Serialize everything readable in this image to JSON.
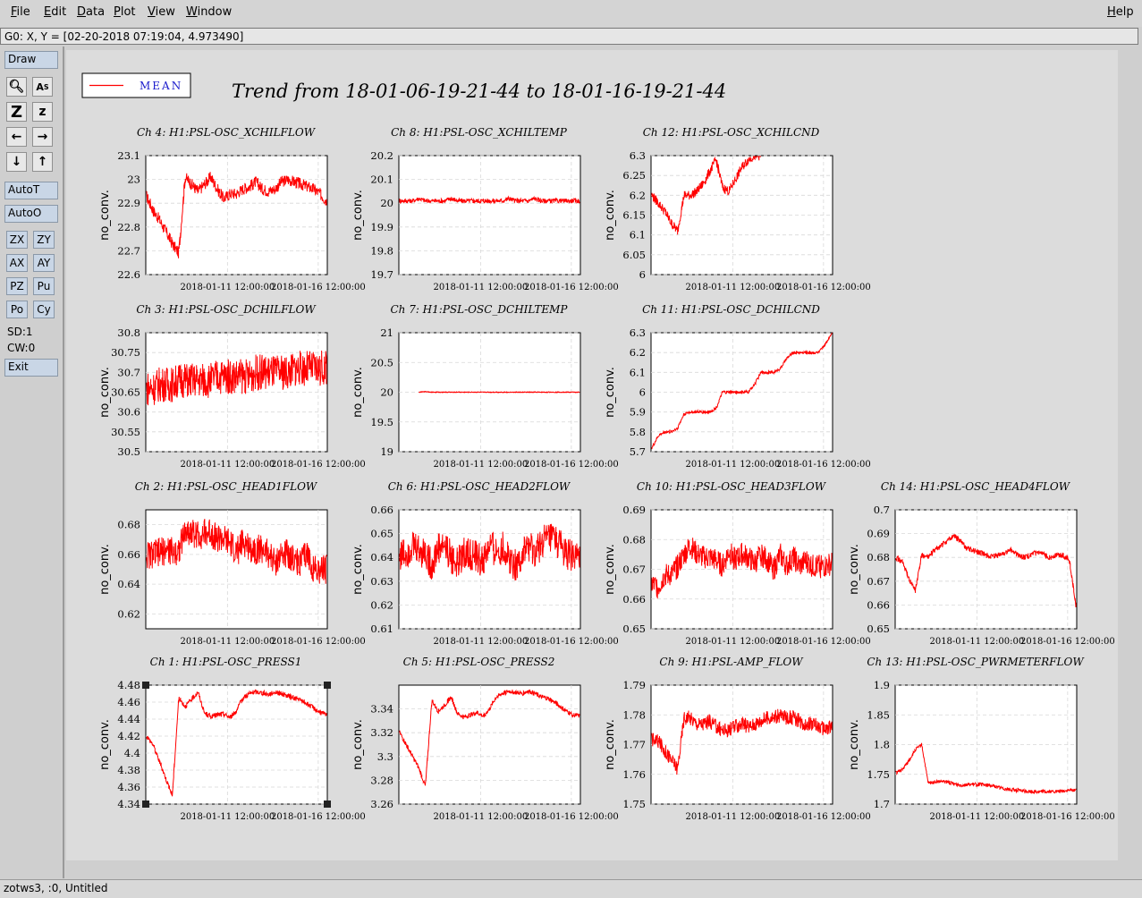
{
  "menubar": {
    "items": [
      "File",
      "Edit",
      "Data",
      "Plot",
      "View",
      "Window"
    ],
    "help": "Help"
  },
  "status": {
    "cursor_readout": "G0: X, Y = [02-20-2018 07:19:04, 4.973490]"
  },
  "toolbar": {
    "draw": "Draw",
    "auto_t": "AutoT",
    "auto_o": "AutoO",
    "small_buttons": [
      "ZX",
      "ZY",
      "AX",
      "AY",
      "PZ",
      "Pu",
      "Po",
      "Cy"
    ],
    "sd": "SD:1",
    "cw": "CW:0",
    "exit": "Exit"
  },
  "footer": {
    "text": "zotws3, :0, Untitled"
  },
  "colors": {
    "trace": "#ff0000",
    "legend_text": "#1a1acc",
    "panel_bg": "#ffffff"
  },
  "chart_data": {
    "type": "line",
    "title": "Trend from 18-01-06-19-21-44 to 18-01-16-19-21-44",
    "legend": {
      "entries": [
        "MEAN"
      ],
      "placement": "top-left"
    },
    "x_tick_labels": [
      "2018-01-11 12:00:00",
      "2018-01-16 12:00:00"
    ],
    "ylabel": "no_conv.",
    "panels": [
      {
        "title": "Ch 4: H1:PSL-OSC_XCHILFLOW",
        "ylim": [
          22.6,
          23.1
        ],
        "yticks": [
          "23.1",
          "23",
          "22.9",
          "22.8",
          "22.7",
          "22.6"
        ],
        "values": [
          22.93,
          22.87,
          22.83,
          22.78,
          22.73,
          22.69,
          23.01,
          22.98,
          22.95,
          22.98,
          23.01,
          22.96,
          22.92,
          22.94,
          22.94,
          22.96,
          22.97,
          22.99,
          22.96,
          22.95,
          22.96,
          22.99,
          23.0,
          22.99,
          22.98,
          22.97,
          22.96,
          22.94,
          22.91
        ],
        "band": 0.025
      },
      {
        "title": "Ch 8: H1:PSL-OSC_XCHILTEMP",
        "ylim": [
          19.7,
          20.2
        ],
        "yticks": [
          "20.2",
          "20.1",
          "20",
          "19.9",
          "19.8",
          "19.7"
        ],
        "values": [
          20.01,
          20.01,
          20.01,
          20.02,
          20.01,
          20.01,
          20.01,
          20.01,
          20.02,
          20.01,
          20.01,
          20.01,
          20.01,
          20.01,
          20.01,
          20.01,
          20.01,
          20.02,
          20.01,
          20.01,
          20.01,
          20.02,
          20.01,
          20.01,
          20.01,
          20.01,
          20.01,
          20.01,
          20.01
        ],
        "band": 0.01
      },
      {
        "title": "Ch 12: H1:PSL-OSC_XCHILCND",
        "ylim": [
          6,
          6.3
        ],
        "yticks": [
          "6.3",
          "6.25",
          "6.2",
          "6.15",
          "6.1",
          "6.05",
          "6"
        ],
        "values": [
          6.2,
          6.18,
          6.16,
          6.13,
          6.11,
          6.2,
          6.2,
          6.21,
          6.23,
          6.26,
          6.29,
          6.22,
          6.21,
          6.24,
          6.27,
          6.29,
          6.3,
          6.3,
          6.3,
          6.3,
          6.3,
          6.3,
          6.3,
          6.3,
          6.3,
          6.3,
          6.3,
          6.3,
          6.3
        ],
        "band": 0.012,
        "stop_at": 17
      },
      {
        "title": "Ch 3: H1:PSL-OSC_DCHILFLOW",
        "ylim": [
          30.5,
          30.8
        ],
        "yticks": [
          "30.8",
          "30.75",
          "30.7",
          "30.65",
          "30.6",
          "30.55",
          "30.5"
        ],
        "values": [
          30.66,
          30.66,
          30.67,
          30.67,
          30.67,
          30.68,
          30.68,
          30.68,
          30.68,
          30.68,
          30.68,
          30.69,
          30.69,
          30.69,
          30.69,
          30.69,
          30.69,
          30.7,
          30.7,
          30.7,
          30.7,
          30.7,
          30.7,
          30.71,
          30.71,
          30.71,
          30.71,
          30.71,
          30.71
        ],
        "band": 0.045
      },
      {
        "title": "Ch 7: H1:PSL-OSC_DCHILTEMP",
        "ylim": [
          19,
          21
        ],
        "yticks": [
          "21",
          "20.5",
          "20",
          "19.5",
          "19"
        ],
        "values": [
          20,
          20,
          20,
          20,
          20.01,
          20,
          20,
          20,
          20,
          20,
          20,
          20,
          20,
          20,
          20,
          20,
          20,
          20,
          20,
          20,
          20,
          20,
          20,
          20,
          20,
          20,
          20,
          20,
          20
        ],
        "band": 0.005,
        "start_at": 3
      },
      {
        "title": "Ch 11: H1:PSL-OSC_DCHILCND",
        "ylim": [
          5.7,
          6.3
        ],
        "yticks": [
          "6.3",
          "6.2",
          "6.1",
          "6",
          "5.9",
          "5.8",
          "5.7"
        ],
        "values": [
          5.72,
          5.78,
          5.8,
          5.8,
          5.82,
          5.89,
          5.9,
          5.9,
          5.9,
          5.9,
          5.92,
          6.0,
          6.0,
          6.0,
          6.0,
          6.0,
          6.04,
          6.1,
          6.1,
          6.1,
          6.12,
          6.17,
          6.2,
          6.2,
          6.2,
          6.2,
          6.2,
          6.24,
          6.3
        ],
        "band": 0.008
      },
      {
        "title": "Ch 2: H1:PSL-OSC_HEAD1FLOW",
        "ylim": [
          0.61,
          0.69
        ],
        "yticks": [
          "0.68",
          "0.66",
          "0.64",
          "0.62"
        ],
        "values": [
          0.66,
          0.66,
          0.661,
          0.663,
          0.662,
          0.663,
          0.675,
          0.675,
          0.673,
          0.674,
          0.675,
          0.671,
          0.67,
          0.667,
          0.661,
          0.668,
          0.665,
          0.663,
          0.664,
          0.66,
          0.655,
          0.659,
          0.661,
          0.656,
          0.655,
          0.66,
          0.651,
          0.649,
          0.65
        ],
        "band": 0.01
      },
      {
        "title": "Ch 6: H1:PSL-OSC_HEAD2FLOW",
        "ylim": [
          0.61,
          0.66
        ],
        "yticks": [
          "0.66",
          "0.65",
          "0.64",
          "0.63",
          "0.62",
          "0.61"
        ],
        "values": [
          0.641,
          0.642,
          0.645,
          0.643,
          0.642,
          0.636,
          0.644,
          0.645,
          0.64,
          0.637,
          0.642,
          0.641,
          0.64,
          0.638,
          0.645,
          0.642,
          0.644,
          0.64,
          0.637,
          0.64,
          0.645,
          0.641,
          0.646,
          0.648,
          0.648,
          0.645,
          0.641,
          0.641,
          0.638
        ],
        "band": 0.007
      },
      {
        "title": "Ch 10: H1:PSL-OSC_HEAD3FLOW",
        "ylim": [
          0.65,
          0.69
        ],
        "yticks": [
          "0.69",
          "0.68",
          "0.67",
          "0.66",
          "0.65"
        ],
        "values": [
          0.665,
          0.664,
          0.668,
          0.668,
          0.671,
          0.675,
          0.678,
          0.675,
          0.674,
          0.674,
          0.673,
          0.671,
          0.676,
          0.673,
          0.675,
          0.674,
          0.672,
          0.675,
          0.673,
          0.67,
          0.675,
          0.671,
          0.674,
          0.671,
          0.673,
          0.671,
          0.671,
          0.671,
          0.672
        ],
        "band": 0.004
      },
      {
        "title": "Ch 14: H1:PSL-OSC_HEAD4FLOW",
        "ylim": [
          0.65,
          0.7
        ],
        "yticks": [
          "0.7",
          "0.69",
          "0.68",
          "0.67",
          "0.66",
          "0.65"
        ],
        "values": [
          0.68,
          0.678,
          0.671,
          0.666,
          0.681,
          0.68,
          0.683,
          0.685,
          0.687,
          0.689,
          0.687,
          0.684,
          0.683,
          0.682,
          0.681,
          0.68,
          0.681,
          0.682,
          0.683,
          0.681,
          0.68,
          0.681,
          0.682,
          0.681,
          0.68,
          0.681,
          0.681,
          0.679,
          0.66
        ],
        "band": 0.0012
      },
      {
        "title": "Ch 1: H1:PSL-OSC_PRESS1",
        "ylim": [
          4.34,
          4.48
        ],
        "yticks": [
          "4.48",
          "4.46",
          "4.44",
          "4.42",
          "4.4",
          "4.38",
          "4.36",
          "4.34"
        ],
        "values": [
          4.42,
          4.41,
          4.39,
          4.37,
          4.35,
          4.465,
          4.455,
          4.463,
          4.472,
          4.447,
          4.443,
          4.445,
          4.446,
          4.442,
          4.45,
          4.465,
          4.47,
          4.472,
          4.471,
          4.469,
          4.472,
          4.47,
          4.467,
          4.465,
          4.462,
          4.458,
          4.453,
          4.448,
          4.445
        ],
        "band": 0.003
      },
      {
        "title": "Ch 5: H1:PSL-OSC_PRESS2",
        "ylim": [
          3.26,
          3.36
        ],
        "yticks": [
          "3.34",
          "3.32",
          "3.3",
          "3.28",
          "3.26"
        ],
        "values": [
          3.32,
          3.31,
          3.3,
          3.29,
          3.275,
          3.347,
          3.338,
          3.343,
          3.35,
          3.336,
          3.333,
          3.335,
          3.337,
          3.334,
          3.34,
          3.35,
          3.353,
          3.355,
          3.354,
          3.353,
          3.355,
          3.353,
          3.35,
          3.349,
          3.346,
          3.342,
          3.338,
          3.335,
          3.334
        ],
        "band": 0.002
      },
      {
        "title": "Ch 9: H1:PSL-AMP_FLOW",
        "ylim": [
          1.75,
          1.79
        ],
        "yticks": [
          "1.79",
          "1.78",
          "1.77",
          "1.76",
          "1.75"
        ],
        "values": [
          1.772,
          1.771,
          1.768,
          1.765,
          1.762,
          1.779,
          1.779,
          1.777,
          1.777,
          1.778,
          1.776,
          1.775,
          1.775,
          1.776,
          1.777,
          1.776,
          1.777,
          1.778,
          1.779,
          1.779,
          1.78,
          1.779,
          1.779,
          1.778,
          1.777,
          1.777,
          1.776,
          1.775,
          1.776
        ],
        "band": 0.0025
      },
      {
        "title": "Ch 13: H1:PSL-OSC_PWRMETERFLOW",
        "ylim": [
          1.7,
          1.9
        ],
        "yticks": [
          "1.9",
          "1.85",
          "1.8",
          "1.75",
          "1.7"
        ],
        "values": [
          1.753,
          1.758,
          1.773,
          1.791,
          1.8,
          1.735,
          1.737,
          1.738,
          1.737,
          1.734,
          1.732,
          1.733,
          1.733,
          1.733,
          1.732,
          1.731,
          1.728,
          1.726,
          1.724,
          1.723,
          1.722,
          1.721,
          1.721,
          1.721,
          1.721,
          1.721,
          1.722,
          1.723,
          1.724
        ],
        "band": 0.003
      }
    ]
  }
}
